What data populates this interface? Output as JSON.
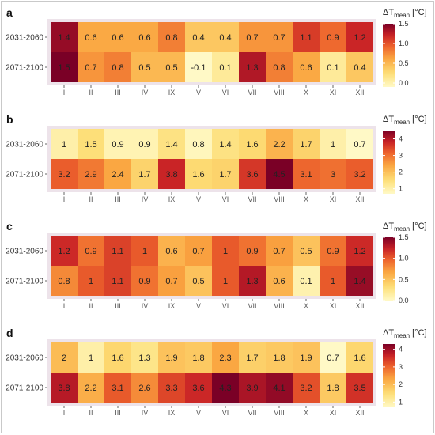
{
  "legend_title": "ΔT",
  "legend_sub": "mean",
  "legend_unit": " [°C]",
  "chart_data": [
    {
      "type": "heatmap",
      "panel": "a",
      "rows": [
        "2031-2060",
        "2071-2100"
      ],
      "columns": [
        "I",
        "II",
        "III",
        "IV",
        "IX",
        "V",
        "VI",
        "VII",
        "VIII",
        "X",
        "XI",
        "XII"
      ],
      "values": [
        [
          1.4,
          0.6,
          0.6,
          0.6,
          0.8,
          0.4,
          0.4,
          0.7,
          0.7,
          1.1,
          0.9,
          1.2
        ],
        [
          1.5,
          0.7,
          0.8,
          0.5,
          0.5,
          -0.1,
          0.1,
          1.3,
          0.8,
          0.6,
          0.1,
          0.4
        ]
      ],
      "colorbar": {
        "min": -0.1,
        "max": 1.5,
        "ticks": [
          "0.0",
          "0.5",
          "1.0",
          "1.5"
        ],
        "tick_values": [
          0.0,
          0.5,
          1.0,
          1.5
        ]
      }
    },
    {
      "type": "heatmap",
      "panel": "b",
      "rows": [
        "2031-2060",
        "2071-2100"
      ],
      "columns": [
        "I",
        "II",
        "III",
        "IV",
        "IX",
        "V",
        "VI",
        "VII",
        "VIII",
        "X",
        "XI",
        "XII"
      ],
      "values": [
        [
          1,
          1.5,
          0.9,
          0.9,
          1.4,
          0.8,
          1.4,
          1.6,
          2.2,
          1.7,
          1,
          0.7
        ],
        [
          3.2,
          2.9,
          2.4,
          1.7,
          3.8,
          1.6,
          1.7,
          3.6,
          4.5,
          3.1,
          3,
          3.2
        ]
      ],
      "colorbar": {
        "min": 0.7,
        "max": 4.5,
        "ticks": [
          "1",
          "2",
          "3",
          "4"
        ],
        "tick_values": [
          1,
          2,
          3,
          4
        ]
      }
    },
    {
      "type": "heatmap",
      "panel": "c",
      "rows": [
        "2031-2060",
        "2071-2100"
      ],
      "columns": [
        "I",
        "II",
        "III",
        "IV",
        "IX",
        "V",
        "VI",
        "VII",
        "VIII",
        "X",
        "XI",
        "XII"
      ],
      "values": [
        [
          1.2,
          0.9,
          1.1,
          1,
          0.6,
          0.7,
          1,
          0.9,
          0.7,
          0.5,
          0.9,
          1.2
        ],
        [
          0.8,
          1,
          1.1,
          0.9,
          0.7,
          0.5,
          1,
          1.3,
          0.6,
          0.1,
          1,
          1.4
        ]
      ],
      "colorbar": {
        "min": 0.0,
        "max": 1.5,
        "ticks": [
          "0.0",
          "0.5",
          "1.0",
          "1.5"
        ],
        "tick_values": [
          0.0,
          0.5,
          1.0,
          1.5
        ]
      }
    },
    {
      "type": "heatmap",
      "panel": "d",
      "rows": [
        "2031-2060",
        "2071-2100"
      ],
      "columns": [
        "I",
        "II",
        "III",
        "IV",
        "IX",
        "V",
        "VI",
        "VII",
        "VIII",
        "X",
        "XI",
        "XII"
      ],
      "values": [
        [
          2,
          1,
          1.6,
          1.3,
          1.9,
          1.8,
          2.3,
          1.7,
          1.8,
          1.9,
          0.7,
          1.6
        ],
        [
          3.8,
          2.2,
          3.1,
          2.6,
          3.3,
          3.6,
          4.3,
          3.9,
          4.1,
          3.2,
          1.8,
          3.5
        ]
      ],
      "colorbar": {
        "min": 0.7,
        "max": 4.3,
        "ticks": [
          "1",
          "2",
          "3",
          "4"
        ],
        "tick_values": [
          1,
          2,
          3,
          4
        ]
      }
    }
  ]
}
